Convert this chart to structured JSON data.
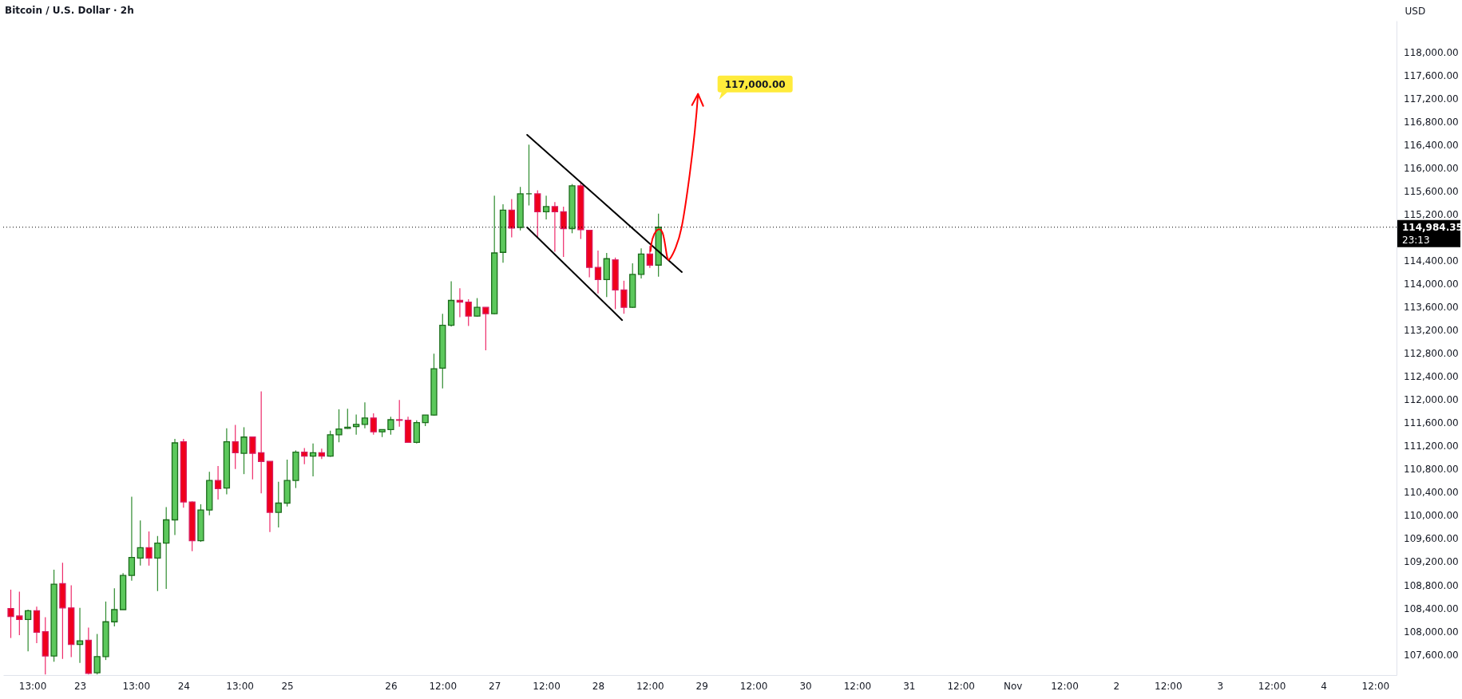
{
  "chart_data": {
    "type": "candlestick",
    "title": "Bitcoin / U.S. Dollar · 2h",
    "ylabel": "USD",
    "x": [
      "--10-22T08:00",
      "--10-22T10:00",
      "--10-22T12:00",
      "--10-22T14:00",
      "--10-22T16:00",
      "--10-22T18:00",
      "--10-22T20:00",
      "--10-22T22:00",
      "--10-23T00:00",
      "--10-23T02:00",
      "--10-23T04:00",
      "--10-23T06:00",
      "--10-23T08:00",
      "--10-23T10:00",
      "--10-23T12:00",
      "--10-23T14:00",
      "--10-23T16:00",
      "--10-23T18:00",
      "--10-23T20:00",
      "--10-23T22:00",
      "--10-24T00:00",
      "--10-24T02:00",
      "--10-24T04:00",
      "--10-24T06:00",
      "--10-24T08:00",
      "--10-24T10:00",
      "--10-24T12:00",
      "--10-24T14:00",
      "--10-24T16:00",
      "--10-24T18:00",
      "--10-24T20:00",
      "--10-24T22:00",
      "--10-25T00:00",
      "--10-25T02:00",
      "--10-25T04:00",
      "--10-25T06:00",
      "--10-25T08:00",
      "--10-25T10:00",
      "--10-25T12:00",
      "--10-25T14:00",
      "--10-25T16:00",
      "--10-25T18:00",
      "--10-25T20:00",
      "--10-25T22:00",
      "--10-26T00:00",
      "--10-26T02:00",
      "--10-26T04:00",
      "--10-26T06:00",
      "--10-26T08:00",
      "--10-26T10:00",
      "--10-26T12:00",
      "--10-26T14:00",
      "--10-26T16:00",
      "--10-26T18:00",
      "--10-26T20:00",
      "--10-26T22:00",
      "--10-27T00:00",
      "--10-27T02:00",
      "--10-27T04:00",
      "--10-27T06:00",
      "--10-27T08:00",
      "--10-27T10:00",
      "--10-27T12:00",
      "--10-27T14:00",
      "--10-27T16:00",
      "--10-27T18:00",
      "--10-27T20:00",
      "--10-27T22:00",
      "--10-28T00:00",
      "--10-28T02:00",
      "--10-28T04:00",
      "--10-28T06:00",
      "--10-28T08:00",
      "--10-28T10:00",
      "--10-28T12:00",
      "--10-28T14:00"
    ],
    "ohlc": [
      [
        108400,
        108725,
        107890,
        108260
      ],
      [
        108270,
        108690,
        107940,
        108210
      ],
      [
        108210,
        108380,
        107660,
        108360
      ],
      [
        108360,
        108430,
        107800,
        107990
      ],
      [
        108000,
        108250,
        107260,
        107580
      ],
      [
        107580,
        109070,
        107480,
        108820
      ],
      [
        108830,
        109190,
        107530,
        108410
      ],
      [
        108410,
        108800,
        107560,
        107780
      ],
      [
        107780,
        108410,
        107460,
        107840
      ],
      [
        107850,
        108070,
        107260,
        107280
      ],
      [
        107290,
        107960,
        107260,
        107570
      ],
      [
        107570,
        108520,
        107510,
        108170
      ],
      [
        108170,
        108750,
        108090,
        108380
      ],
      [
        108380,
        109010,
        108380,
        108970
      ],
      [
        108970,
        110330,
        108880,
        109280
      ],
      [
        109270,
        109920,
        109140,
        109450
      ],
      [
        109450,
        109730,
        109140,
        109270
      ],
      [
        109270,
        109650,
        108700,
        109530
      ],
      [
        109530,
        110150,
        108740,
        109930
      ],
      [
        109930,
        111330,
        109670,
        111260
      ],
      [
        111280,
        111330,
        110140,
        110240
      ],
      [
        110240,
        110250,
        109390,
        109570
      ],
      [
        109570,
        110200,
        109550,
        110100
      ],
      [
        110100,
        110760,
        110010,
        110610
      ],
      [
        110610,
        110860,
        110280,
        110470
      ],
      [
        110480,
        111510,
        110370,
        111280
      ],
      [
        111280,
        111570,
        110810,
        111090
      ],
      [
        111080,
        111530,
        110720,
        111360
      ],
      [
        111360,
        111360,
        110630,
        111080
      ],
      [
        111090,
        112150,
        110390,
        110940
      ],
      [
        110940,
        110940,
        109720,
        110060
      ],
      [
        110060,
        110590,
        109800,
        110220
      ],
      [
        110220,
        110970,
        110160,
        110610
      ],
      [
        110610,
        111130,
        110480,
        111100
      ],
      [
        111100,
        111170,
        110890,
        111030
      ],
      [
        111030,
        111250,
        110680,
        111090
      ],
      [
        111090,
        111160,
        110980,
        111030
      ],
      [
        111030,
        111470,
        111020,
        111400
      ],
      [
        111400,
        111840,
        111270,
        111500
      ],
      [
        111510,
        111850,
        111500,
        111530
      ],
      [
        111540,
        111750,
        111400,
        111580
      ],
      [
        111580,
        111960,
        111510,
        111690
      ],
      [
        111690,
        111770,
        111400,
        111450
      ],
      [
        111450,
        111490,
        111360,
        111490
      ],
      [
        111490,
        111710,
        111400,
        111660
      ],
      [
        111660,
        112000,
        111540,
        111650
      ],
      [
        111650,
        111710,
        111260,
        111270
      ],
      [
        111270,
        111650,
        111250,
        111610
      ],
      [
        111610,
        111740,
        111550,
        111740
      ],
      [
        111740,
        112800,
        111730,
        112540
      ],
      [
        112550,
        113490,
        112200,
        113290
      ],
      [
        113290,
        114050,
        113270,
        113720
      ],
      [
        113720,
        113930,
        113430,
        113690
      ],
      [
        113690,
        113740,
        113280,
        113450
      ],
      [
        113450,
        113760,
        113440,
        113600
      ],
      [
        113600,
        113600,
        112860,
        113490
      ],
      [
        113490,
        115530,
        113480,
        114540
      ],
      [
        114550,
        115380,
        114370,
        115280
      ],
      [
        115280,
        115470,
        114810,
        114970
      ],
      [
        114980,
        115680,
        114930,
        115560
      ],
      [
        115560,
        116410,
        115360,
        115560
      ],
      [
        115560,
        115620,
        114810,
        115250
      ],
      [
        115250,
        115530,
        115120,
        115340
      ],
      [
        115340,
        115420,
        114560,
        115250
      ],
      [
        115250,
        115340,
        114470,
        114960
      ],
      [
        114960,
        115730,
        114880,
        115700
      ],
      [
        115700,
        115770,
        114780,
        114940
      ],
      [
        114930,
        114930,
        114120,
        114290
      ],
      [
        114290,
        114580,
        113840,
        114080
      ],
      [
        114080,
        114540,
        113780,
        114440
      ],
      [
        114420,
        114460,
        113570,
        113900
      ],
      [
        113900,
        114060,
        113490,
        113600
      ],
      [
        113600,
        114360,
        113590,
        114170
      ],
      [
        114170,
        114620,
        114100,
        114520
      ],
      [
        114520,
        114660,
        114280,
        114330
      ],
      [
        114330,
        115220,
        114130,
        114984.35
      ]
    ],
    "series": [
      {
        "type": "line",
        "color": "#000000",
        "x": [
          "--10-27T07:35",
          "--10-28T19:25"
        ],
        "values": [
          116580,
          114210
        ]
      },
      {
        "type": "line",
        "color": "#000000",
        "x": [
          "--10-27T07:35",
          "--10-28T05:35"
        ],
        "values": [
          114980,
          113380
        ]
      }
    ],
    "ref_lines": [
      {
        "axis": "y",
        "value": 114984.35,
        "label": "114,984.35",
        "color": "#000000",
        "line_style": "dotted"
      }
    ],
    "annotations": [
      "23:13",
      "117,000.00"
    ],
    "xlim": [
      "--10-22T07:10",
      "--11-04T16:00"
    ],
    "ylim": [
      107250,
      118550
    ],
    "xticks": [
      {
        "value": "--10-22T13:00",
        "label": "13:00"
      },
      {
        "value": "--10-23",
        "label": "23"
      },
      {
        "value": "--10-23T13:00",
        "label": "13:00"
      },
      {
        "value": "--10-24",
        "label": "24"
      },
      {
        "value": "--10-24T13:00",
        "label": "13:00"
      },
      {
        "value": "--10-25",
        "label": "25"
      },
      {
        "value": "--10-26",
        "label": "26"
      },
      {
        "value": "--10-26T12:00",
        "label": "12:00"
      },
      {
        "value": "--10-27",
        "label": "27"
      },
      {
        "value": "--10-27T12:00",
        "label": "12:00"
      },
      {
        "value": "--10-28",
        "label": "28"
      },
      {
        "value": "--10-28T12:00",
        "label": "12:00"
      },
      {
        "value": "--10-29",
        "label": "29"
      },
      {
        "value": "--10-29T12:00",
        "label": "12:00"
      },
      {
        "value": "--10-30",
        "label": "30"
      },
      {
        "value": "--10-30T12:00",
        "label": "12:00"
      },
      {
        "value": "--10-31",
        "label": "31"
      },
      {
        "value": "--10-31T12:00",
        "label": "12:00"
      },
      {
        "value": "--11-01",
        "label": "Nov"
      },
      {
        "value": "--11-01T12:00",
        "label": "12:00"
      },
      {
        "value": "--11-02",
        "label": "2"
      },
      {
        "value": "--11-02T12:00",
        "label": "12:00"
      },
      {
        "value": "--11-03",
        "label": "3"
      },
      {
        "value": "--11-03T12:00",
        "label": "12:00"
      },
      {
        "value": "--11-04",
        "label": "4"
      },
      {
        "value": "--11-04T12:00",
        "label": "12:00"
      }
    ],
    "yticks": [
      {
        "value": 107600,
        "label": "107,600.00"
      },
      {
        "value": 108000,
        "label": "108,000.00"
      },
      {
        "value": 108400,
        "label": "108,400.00"
      },
      {
        "value": 108800,
        "label": "108,800.00"
      },
      {
        "value": 109200,
        "label": "109,200.00"
      },
      {
        "value": 109600,
        "label": "109,600.00"
      },
      {
        "value": 110000,
        "label": "110,000.00"
      },
      {
        "value": 110400,
        "label": "110,400.00"
      },
      {
        "value": 110800,
        "label": "110,800.00"
      },
      {
        "value": 111200,
        "label": "111,200.00"
      },
      {
        "value": 111600,
        "label": "111,600.00"
      },
      {
        "value": 112000,
        "label": "112,000.00"
      },
      {
        "value": 112400,
        "label": "112,400.00"
      },
      {
        "value": 112800,
        "label": "112,800.00"
      },
      {
        "value": 113200,
        "label": "113,200.00"
      },
      {
        "value": 113600,
        "label": "113,600.00"
      },
      {
        "value": 114000,
        "label": "114,000.00"
      },
      {
        "value": 114400,
        "label": "114,400.00"
      },
      {
        "value": 115200,
        "label": "115,200.00"
      },
      {
        "value": 115600,
        "label": "115,600.00"
      },
      {
        "value": 116000,
        "label": "116,000.00"
      },
      {
        "value": 116400,
        "label": "116,400.00"
      },
      {
        "value": 116800,
        "label": "116,800.00"
      },
      {
        "value": 117200,
        "label": "117,200.00"
      },
      {
        "value": 117600,
        "label": "117,600.00"
      },
      {
        "value": 118000,
        "label": "118,000.00"
      }
    ]
  }
}
